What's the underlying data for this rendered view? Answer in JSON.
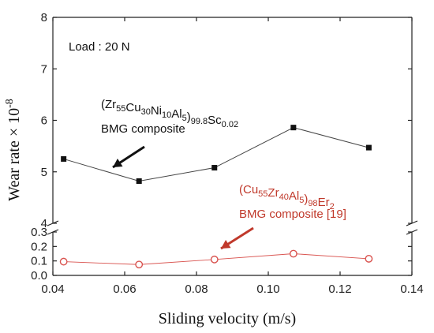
{
  "chart_data": {
    "type": "line",
    "xlabel": "Sliding velocity (m/s)",
    "ylabel": "Wear rate × 10",
    "ylabel_exponent": "-8",
    "xlim": [
      0.04,
      0.14
    ],
    "x_ticks": [
      "0.04",
      "0.06",
      "0.08",
      "0.10",
      "0.12",
      "0.14"
    ],
    "axis_break": true,
    "upper_panel": {
      "ylim": [
        4,
        8
      ],
      "y_ticks": [
        "4",
        "5",
        "6",
        "7",
        "8"
      ]
    },
    "lower_panel": {
      "ylim": [
        0.0,
        0.3
      ],
      "y_ticks": [
        "0.0",
        "0.1",
        "0.2",
        "0.3"
      ]
    },
    "annotation": "Load : 20 N",
    "series": [
      {
        "name_parts": [
          {
            "t": "(Zr",
            "s": ""
          },
          {
            "t": "55",
            "s": "sub"
          },
          {
            "t": "Cu",
            "s": ""
          },
          {
            "t": "30",
            "s": "sub"
          },
          {
            "t": "Ni",
            "s": ""
          },
          {
            "t": "10",
            "s": "sub"
          },
          {
            "t": "Al",
            "s": ""
          },
          {
            "t": "5",
            "s": "sub"
          },
          {
            "t": ")",
            "s": ""
          },
          {
            "t": "99.8",
            "s": "sub"
          },
          {
            "t": "Sc",
            "s": ""
          },
          {
            "t": "0.02",
            "s": "sub"
          }
        ],
        "name_line2": "BMG composite",
        "panel": "upper",
        "marker": "filled-square",
        "color": "#444444",
        "label_color": "#111111",
        "x": [
          0.043,
          0.064,
          0.085,
          0.107,
          0.128
        ],
        "y": [
          5.25,
          4.82,
          5.08,
          5.86,
          5.47
        ]
      },
      {
        "name_parts": [
          {
            "t": "(Cu",
            "s": ""
          },
          {
            "t": "55",
            "s": "sub"
          },
          {
            "t": "Zr",
            "s": ""
          },
          {
            "t": "40",
            "s": "sub"
          },
          {
            "t": "Al",
            "s": ""
          },
          {
            "t": "5",
            "s": "sub"
          },
          {
            "t": ")",
            "s": ""
          },
          {
            "t": "98",
            "s": "sub"
          },
          {
            "t": "Er",
            "s": ""
          },
          {
            "t": "2",
            "s": "sub"
          }
        ],
        "name_line2": "BMG composite [19]",
        "panel": "lower",
        "marker": "open-circle",
        "color": "#d9534f",
        "label_color": "#c0392b",
        "x": [
          0.043,
          0.064,
          0.085,
          0.107,
          0.128
        ],
        "y": [
          0.095,
          0.075,
          0.11,
          0.15,
          0.115
        ]
      }
    ]
  }
}
